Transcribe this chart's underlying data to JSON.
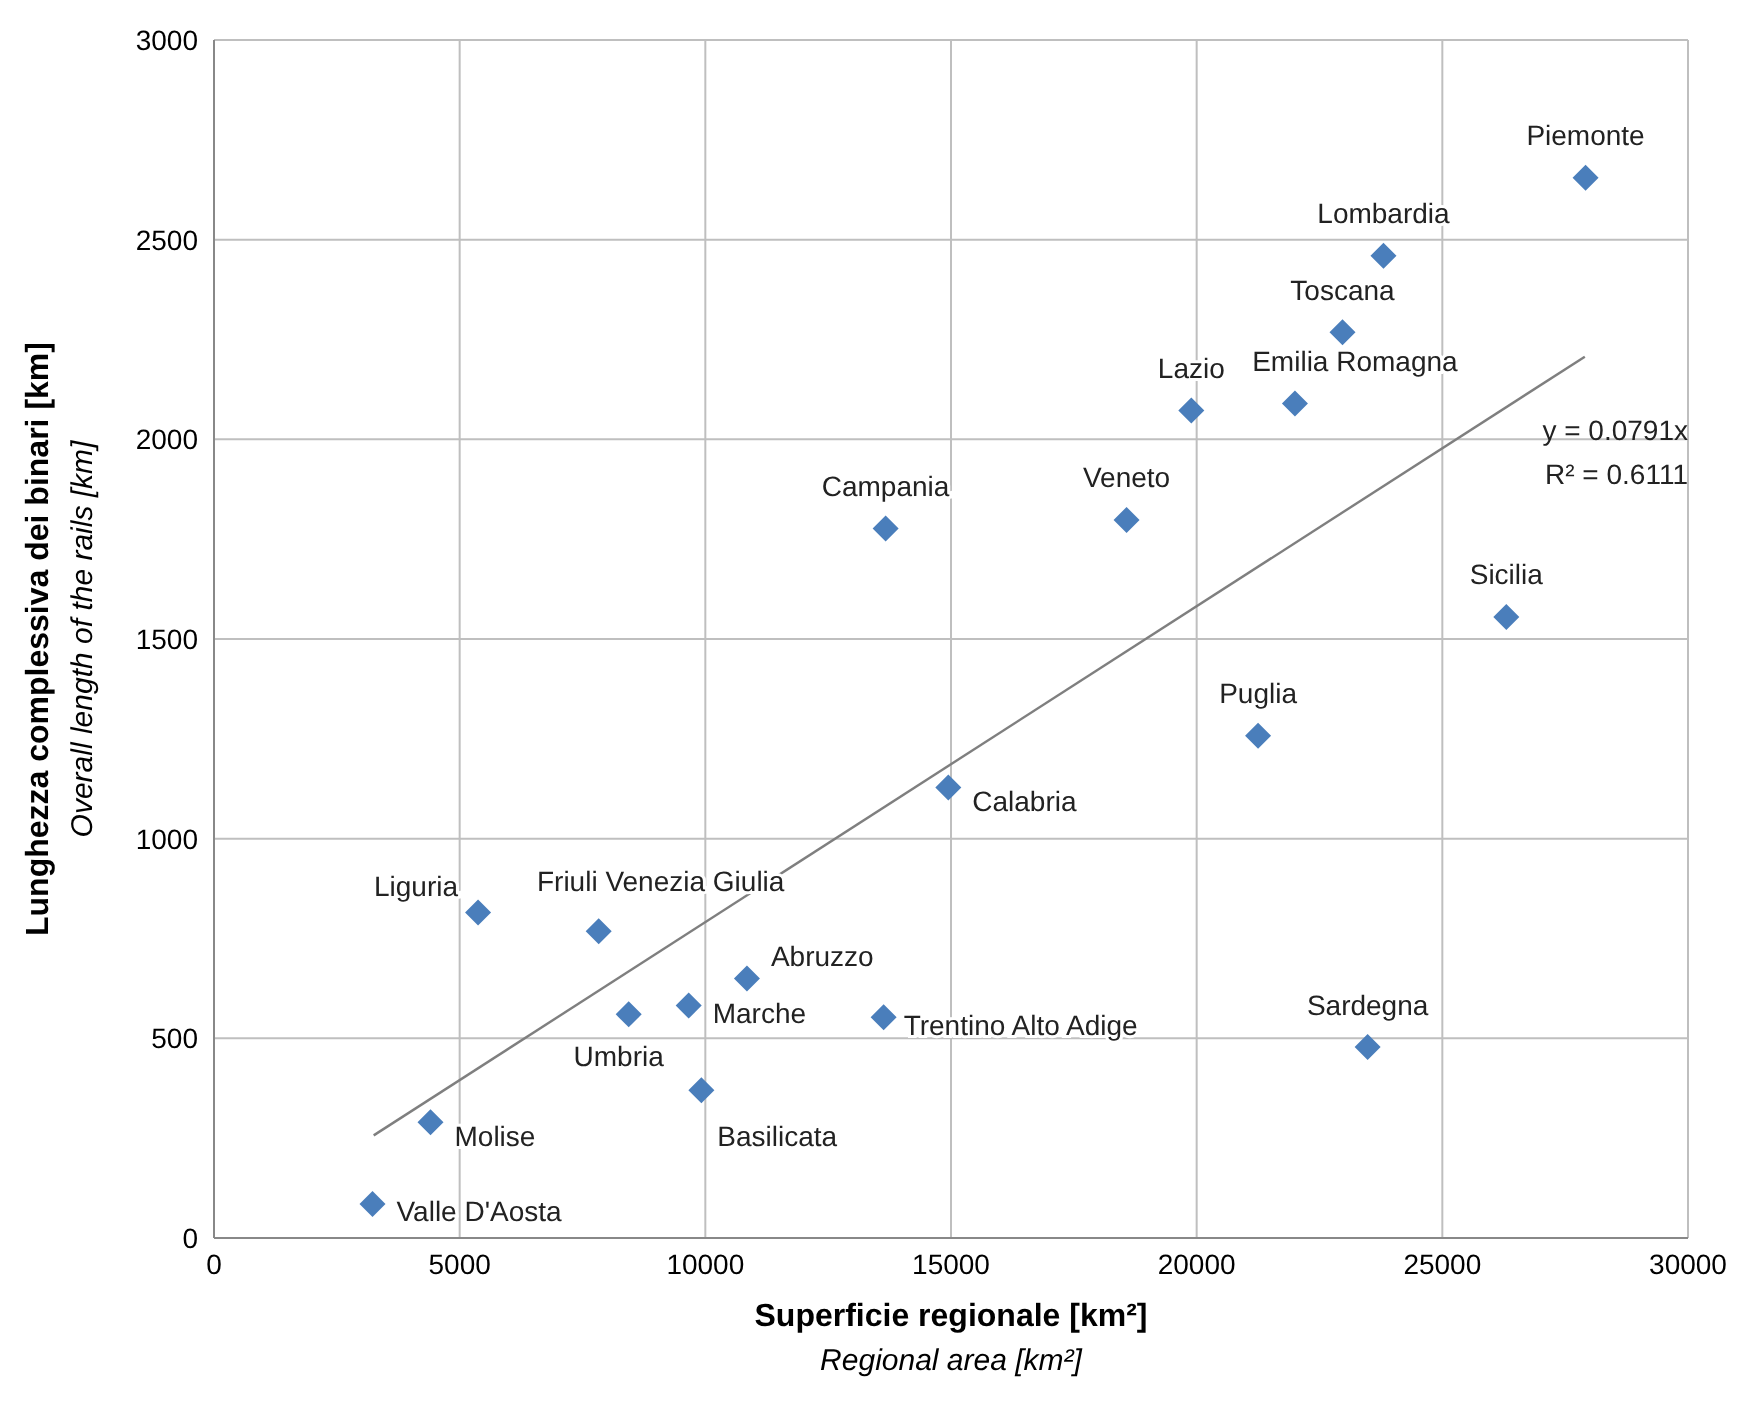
{
  "chart_data": {
    "type": "scatter",
    "xlabel": "Superficie regionale [km²]\nRegional area [km²]",
    "ylabel": "Lunghezza complessiva dei binari [km]\nOverall length of the rails [km]",
    "xlim": [
      0,
      30000
    ],
    "xticks": [
      0,
      5000,
      10000,
      15000,
      20000,
      25000,
      30000
    ],
    "ylim": [
      0,
      3000
    ],
    "yticks": [
      0,
      500,
      1000,
      1500,
      2000,
      2500,
      3000
    ],
    "grid": true,
    "series": [
      {
        "marker": "diamond",
        "color": "#4a7ebb",
        "x": [
          3226,
          4407,
          5375,
          7830,
          8440,
          9661,
          9919,
          10847,
          13629,
          13669,
          14945,
          18573,
          19891,
          21250,
          22000,
          22968,
          23480,
          23802,
          26302,
          27915
        ],
        "values": [
          85,
          290,
          815,
          768,
          560,
          582,
          370,
          650,
          553,
          1777,
          1128,
          1798,
          2072,
          1258,
          2090,
          2268,
          478,
          2460,
          1555,
          2655
        ],
        "value_labels": [
          "Valle D'Aosta",
          "Molise",
          "Liguria",
          "Friuli Venezia Giulia",
          "Umbria",
          "Marche",
          "Basilicata",
          "Abruzzo",
          "Trentino Alto Adige",
          "Campania",
          "Calabria",
          "Veneto",
          "Lazio",
          "Puglia",
          "Emilia Romagna",
          "Toscana",
          "Sardegna",
          "Lombardia",
          "Sicilia",
          "Piemonte"
        ]
      },
      {
        "type": "line",
        "color": "#7f7f7f",
        "x": [
          3250,
          27900
        ],
        "values": [
          257,
          2207
        ]
      }
    ],
    "annotations": [
      "y = 0.0791x",
      "R² = 0.6111"
    ]
  }
}
